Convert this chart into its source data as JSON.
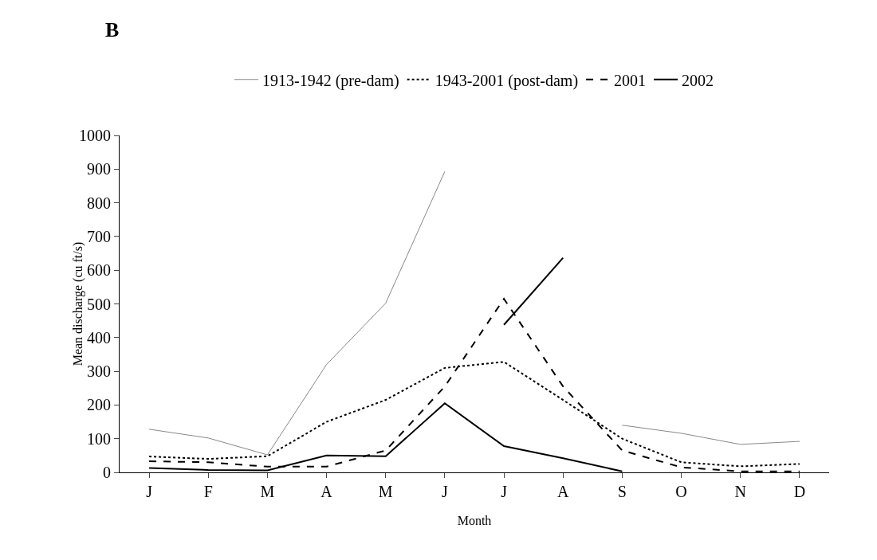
{
  "chart_data": {
    "type": "line",
    "title": "B",
    "xlabel": "Month",
    "ylabel": "Mean discharge (cu ft/s)",
    "categories": [
      "J",
      "F",
      "M",
      "A",
      "M",
      "J",
      "J",
      "A",
      "S",
      "O",
      "N",
      "D"
    ],
    "series": [
      {
        "name": "1913-1942 (pre-dam)",
        "color": "#888888",
        "line_style": "solid",
        "values": [
          128,
          102,
          52,
          320,
          502,
          893,
          null,
          null,
          140,
          116,
          83,
          92
        ]
      },
      {
        "name": "1943-2001 (post-dam)",
        "color": "#000000",
        "line_style": "dotted",
        "values": [
          47,
          40,
          48,
          150,
          215,
          310,
          328,
          215,
          100,
          30,
          18,
          25
        ]
      },
      {
        "name": "2001",
        "color": "#000000",
        "line_style": "dashed",
        "values": [
          33,
          30,
          17,
          17,
          65,
          255,
          515,
          255,
          65,
          15,
          3,
          3
        ]
      },
      {
        "name": "2002",
        "color": "#000000",
        "line_style": "solid",
        "values": [
          13,
          7,
          6,
          50,
          48,
          205,
          78,
          42,
          3,
          null,
          null,
          null
        ]
      },
      {
        "color": "#000000",
        "line_style": "solid",
        "values": [
          null,
          null,
          null,
          null,
          null,
          null,
          438,
          637,
          null,
          null,
          null,
          null
        ]
      }
    ],
    "ylim": [
      0,
      1000
    ],
    "yticks": [
      0,
      100,
      200,
      300,
      400,
      500,
      600,
      700,
      800,
      900,
      1000
    ],
    "grid": false,
    "legend": "top",
    "marker": "none"
  }
}
